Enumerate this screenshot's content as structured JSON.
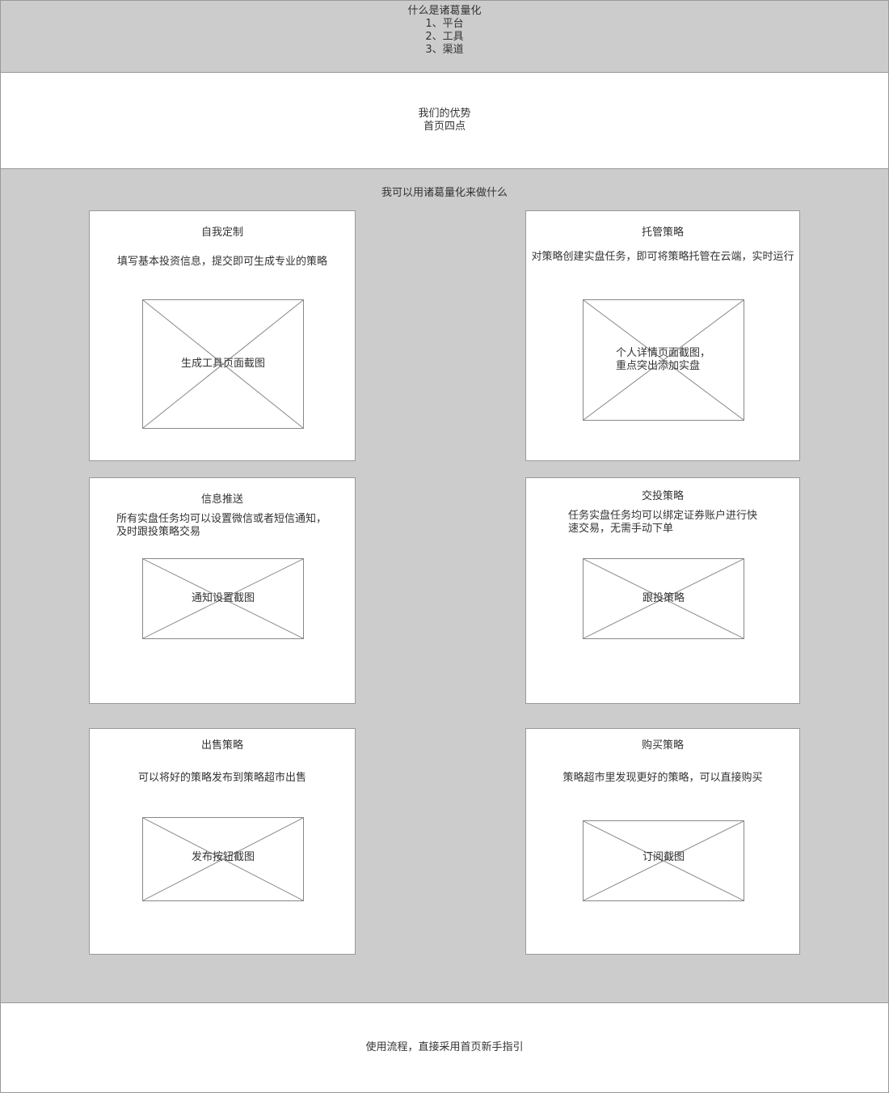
{
  "intro": {
    "title": "什么是诸葛量化",
    "items": [
      "1、平台",
      "2、工具",
      "3、渠道"
    ]
  },
  "advantages": {
    "title": "我们的优势",
    "subtitle": "首页四点"
  },
  "uses": {
    "title": "我可以用诸葛量化来做什么",
    "cards": [
      {
        "title": "自我定制",
        "desc": "填写基本投资信息，提交即可生成专业的策略",
        "image_label": [
          "生成工具页面截图"
        ]
      },
      {
        "title": "托管策略",
        "desc": "对策略创建实盘任务，即可将策略托管在云端，实时运行",
        "image_label": [
          "个人详情页面截图，",
          "重点突出添加实盘"
        ]
      },
      {
        "title": "信息推送",
        "desc_lines": [
          "所有实盘任务均可以设置微信或者短信通知，",
          "及时跟投策略交易"
        ],
        "image_label": [
          "通知设置截图"
        ]
      },
      {
        "title": "交投策略",
        "desc_lines": [
          "任务实盘任务均可以绑定证券账户进行快",
          "速交易，无需手动下单"
        ],
        "image_label": [
          "跟投策略"
        ]
      },
      {
        "title": "出售策略",
        "desc": "可以将好的策略发布到策略超市出售",
        "image_label": [
          "发布按钮截图"
        ]
      },
      {
        "title": "购买策略",
        "desc": "策略超市里发现更好的策略，可以直接购买",
        "image_label": [
          "订阅截图"
        ]
      }
    ]
  },
  "flow": {
    "text": "使用流程，直接采用首页新手指引"
  },
  "colors": {
    "gray_section": "#cccccc",
    "border": "#999999",
    "text": "#333333"
  }
}
